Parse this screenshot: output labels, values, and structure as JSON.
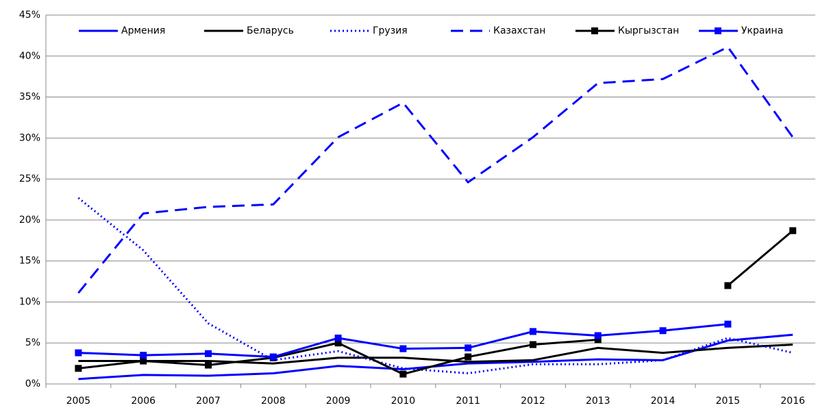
{
  "chart_data": {
    "type": "line",
    "categories": [
      "2005",
      "2006",
      "2007",
      "2008",
      "2009",
      "2010",
      "2011",
      "2012",
      "2013",
      "2014",
      "2015",
      "2016"
    ],
    "ylim": [
      0,
      45
    ],
    "yticks": [
      {
        "value": 0,
        "label": "0%"
      },
      {
        "value": 5,
        "label": "5%"
      },
      {
        "value": 10,
        "label": "10%"
      },
      {
        "value": 15,
        "label": "15%"
      },
      {
        "value": 20,
        "label": "20%"
      },
      {
        "value": 25,
        "label": "25%"
      },
      {
        "value": 30,
        "label": "30%"
      },
      {
        "value": 35,
        "label": "35%"
      },
      {
        "value": 40,
        "label": "40%"
      },
      {
        "value": 45,
        "label": "45%"
      }
    ],
    "grid": true,
    "legend": "top",
    "series": [
      {
        "name": "Армения",
        "color": "#0000ff",
        "style": "solid",
        "values": [
          0.6,
          1.1,
          1.0,
          1.3,
          2.2,
          1.8,
          2.5,
          2.7,
          3.0,
          2.9,
          5.3,
          6.0
        ]
      },
      {
        "name": "Беларусь",
        "color": "#000000",
        "style": "solid",
        "values": [
          2.8,
          2.8,
          2.8,
          2.5,
          3.2,
          3.2,
          2.7,
          2.9,
          4.4,
          3.8,
          4.4,
          4.8
        ]
      },
      {
        "name": "Грузия",
        "color": "#0000ff",
        "style": "dotted",
        "values": [
          22.7,
          16.3,
          7.4,
          2.9,
          4.0,
          1.9,
          1.3,
          2.4,
          2.4,
          2.9,
          5.6,
          3.8
        ]
      },
      {
        "name": "Казахстан",
        "color": "#0000ff",
        "style": "dashed",
        "values": [
          11.1,
          20.8,
          21.6,
          21.9,
          30.1,
          34.3,
          24.6,
          30.1,
          36.7,
          37.2,
          41.1,
          30.1
        ]
      },
      {
        "name": "Кыргызстан",
        "color": "#000000",
        "style": "solid",
        "marker": "square",
        "values": [
          1.9,
          2.8,
          2.3,
          3.2,
          5.0,
          1.2,
          3.3,
          4.8,
          5.4,
          null,
          12.0,
          18.7
        ]
      },
      {
        "name": "Украина",
        "color": "#0000ff",
        "style": "solid",
        "marker": "square",
        "values": [
          3.8,
          3.5,
          3.7,
          3.3,
          5.6,
          4.3,
          4.4,
          6.4,
          5.9,
          6.5,
          7.3,
          null
        ]
      }
    ]
  }
}
